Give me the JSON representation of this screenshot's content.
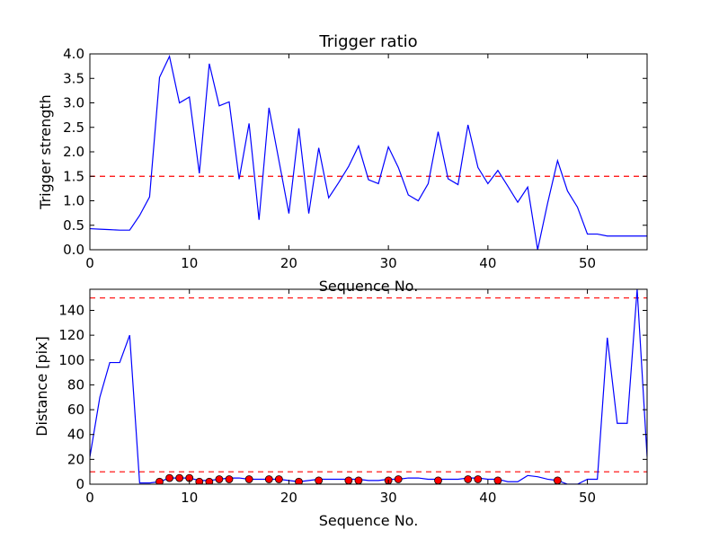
{
  "chart_data": [
    {
      "type": "line",
      "title": "Trigger ratio",
      "xlabel": "Sequence No.",
      "ylabel": "Trigger strength",
      "xlim": [
        0,
        56
      ],
      "ylim": [
        0,
        4.0
      ],
      "xticks": [
        "0",
        "10",
        "20",
        "30",
        "40",
        "50"
      ],
      "yticks": [
        "0.0",
        "0.5",
        "1.0",
        "1.5",
        "2.0",
        "2.5",
        "3.0",
        "3.5",
        "4.0"
      ],
      "grid": false,
      "series": [
        {
          "color": "#0000ff",
          "style": "solid",
          "x": [
            0,
            1,
            2,
            3,
            4,
            5,
            6,
            7,
            8,
            9,
            10,
            11,
            12,
            13,
            14,
            15,
            16,
            17,
            18,
            19,
            20,
            21,
            22,
            23,
            24,
            25,
            26,
            27,
            28,
            29,
            30,
            31,
            32,
            33,
            34,
            35,
            36,
            37,
            38,
            39,
            40,
            41,
            42,
            43,
            44,
            45,
            46,
            47,
            48,
            49,
            50,
            51,
            52,
            53,
            54,
            55,
            56
          ],
          "y": [
            0.43,
            0.42,
            0.41,
            0.4,
            0.4,
            0.7,
            1.08,
            3.52,
            3.95,
            3.0,
            3.12,
            1.56,
            3.8,
            2.94,
            3.02,
            1.44,
            2.58,
            0.61,
            2.9,
            1.82,
            0.74,
            2.48,
            0.74,
            2.08,
            1.06,
            1.37,
            1.7,
            2.12,
            1.43,
            1.35,
            2.1,
            1.68,
            1.12,
            1.0,
            1.35,
            2.41,
            1.45,
            1.33,
            2.55,
            1.68,
            1.35,
            1.62,
            1.3,
            0.97,
            1.28,
            0.0,
            0.95,
            1.82,
            1.2,
            0.87,
            0.32,
            0.32,
            0.28,
            0.28,
            0.28,
            0.28,
            0.28
          ]
        }
      ],
      "reference_lines": [
        {
          "y": 1.5,
          "color": "#ff0000",
          "style": "dashed"
        }
      ]
    },
    {
      "type": "line",
      "title": "",
      "xlabel": "Sequence No.",
      "ylabel": "Distance [pix]",
      "xlim": [
        0,
        56
      ],
      "ylim": [
        0,
        157
      ],
      "xticks": [
        "0",
        "10",
        "20",
        "30",
        "40",
        "50"
      ],
      "yticks": [
        "0",
        "20",
        "40",
        "60",
        "80",
        "100",
        "120",
        "140"
      ],
      "grid": false,
      "series": [
        {
          "color": "#0000ff",
          "style": "solid",
          "x": [
            0,
            1,
            2,
            3,
            4,
            5,
            6,
            7,
            8,
            9,
            10,
            11,
            12,
            13,
            14,
            15,
            16,
            17,
            18,
            19,
            20,
            21,
            22,
            23,
            24,
            25,
            26,
            27,
            28,
            29,
            30,
            31,
            32,
            33,
            34,
            35,
            36,
            37,
            38,
            39,
            40,
            41,
            42,
            43,
            44,
            45,
            46,
            47,
            48,
            49,
            50,
            51,
            52,
            53,
            54,
            55,
            56
          ],
          "y": [
            22,
            70,
            98,
            98,
            120,
            1,
            1,
            2,
            5,
            5,
            5,
            3,
            3,
            4,
            5,
            5,
            4,
            4,
            4,
            4,
            3,
            2,
            3,
            4,
            4,
            4,
            4,
            4,
            3,
            3,
            4,
            4,
            5,
            5,
            4,
            4,
            4,
            4,
            5,
            5,
            4,
            4,
            2,
            2,
            7,
            6,
            4,
            3,
            0,
            0,
            4,
            4,
            118,
            49,
            49,
            157,
            22
          ],
          "markers": {
            "color": "#ff0000",
            "x": [
              7,
              8,
              9,
              10,
              11,
              12,
              13,
              14,
              16,
              18,
              19,
              21,
              23,
              26,
              27,
              30,
              31,
              35,
              38,
              39,
              41,
              47
            ],
            "y": [
              2,
              5,
              5,
              5,
              2,
              2,
              4,
              4,
              4,
              4,
              4,
              2,
              3,
              3,
              3,
              3,
              4,
              3,
              4,
              4,
              3,
              3
            ]
          }
        }
      ],
      "reference_lines": [
        {
          "y": 150,
          "color": "#ff0000",
          "style": "dashed"
        },
        {
          "y": 10,
          "color": "#ff0000",
          "style": "dashed"
        }
      ]
    }
  ]
}
